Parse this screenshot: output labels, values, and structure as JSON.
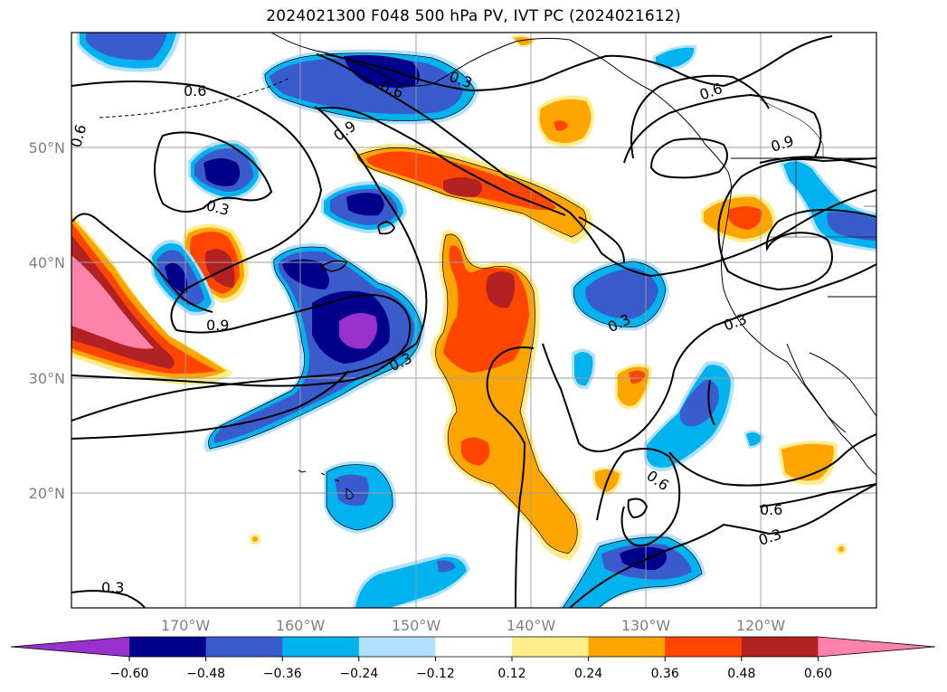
{
  "title": "2024021300 F048 500 hPa PV, IVT PC (2024021612)",
  "colors": {
    "purple": "#9932cc",
    "navy": "#00008b",
    "royal": "#3a5bcc",
    "sky": "#00b2ee",
    "light_sky": "#b0e2ff",
    "white": "#ffffff",
    "light_yellow": "#ffec8b",
    "orange": "#ffa500",
    "red_orange": "#ff4500",
    "firebrick": "#b22222",
    "pink": "#ff82ab"
  },
  "lat_labels": [
    "50°N",
    "40°N",
    "30°N",
    "20°N"
  ],
  "lon_labels": [
    "170°W",
    "160°W",
    "150°W",
    "140°W",
    "130°W",
    "120°W"
  ],
  "colorbar": {
    "ticks": [
      "−0.60",
      "−0.48",
      "−0.36",
      "−0.24",
      "−0.12",
      "0.12",
      "0.24",
      "0.36",
      "0.48",
      "0.60"
    ],
    "colors": [
      "#9932cc",
      "#00008b",
      "#3a5bcc",
      "#00b2ee",
      "#b0e2ff",
      "#ffffff",
      "#ffec8b",
      "#ffa500",
      "#ff4500",
      "#b22222",
      "#ff82ab"
    ]
  },
  "contour_labels": [
    "0.6",
    "0.6",
    "0.3",
    "0.9",
    "0.6",
    "0.9",
    "0.6",
    "0.3",
    "0.9",
    "0.3",
    "0.3",
    "0.3",
    "0.6",
    "0.6",
    "0.3",
    "0.3"
  ]
}
